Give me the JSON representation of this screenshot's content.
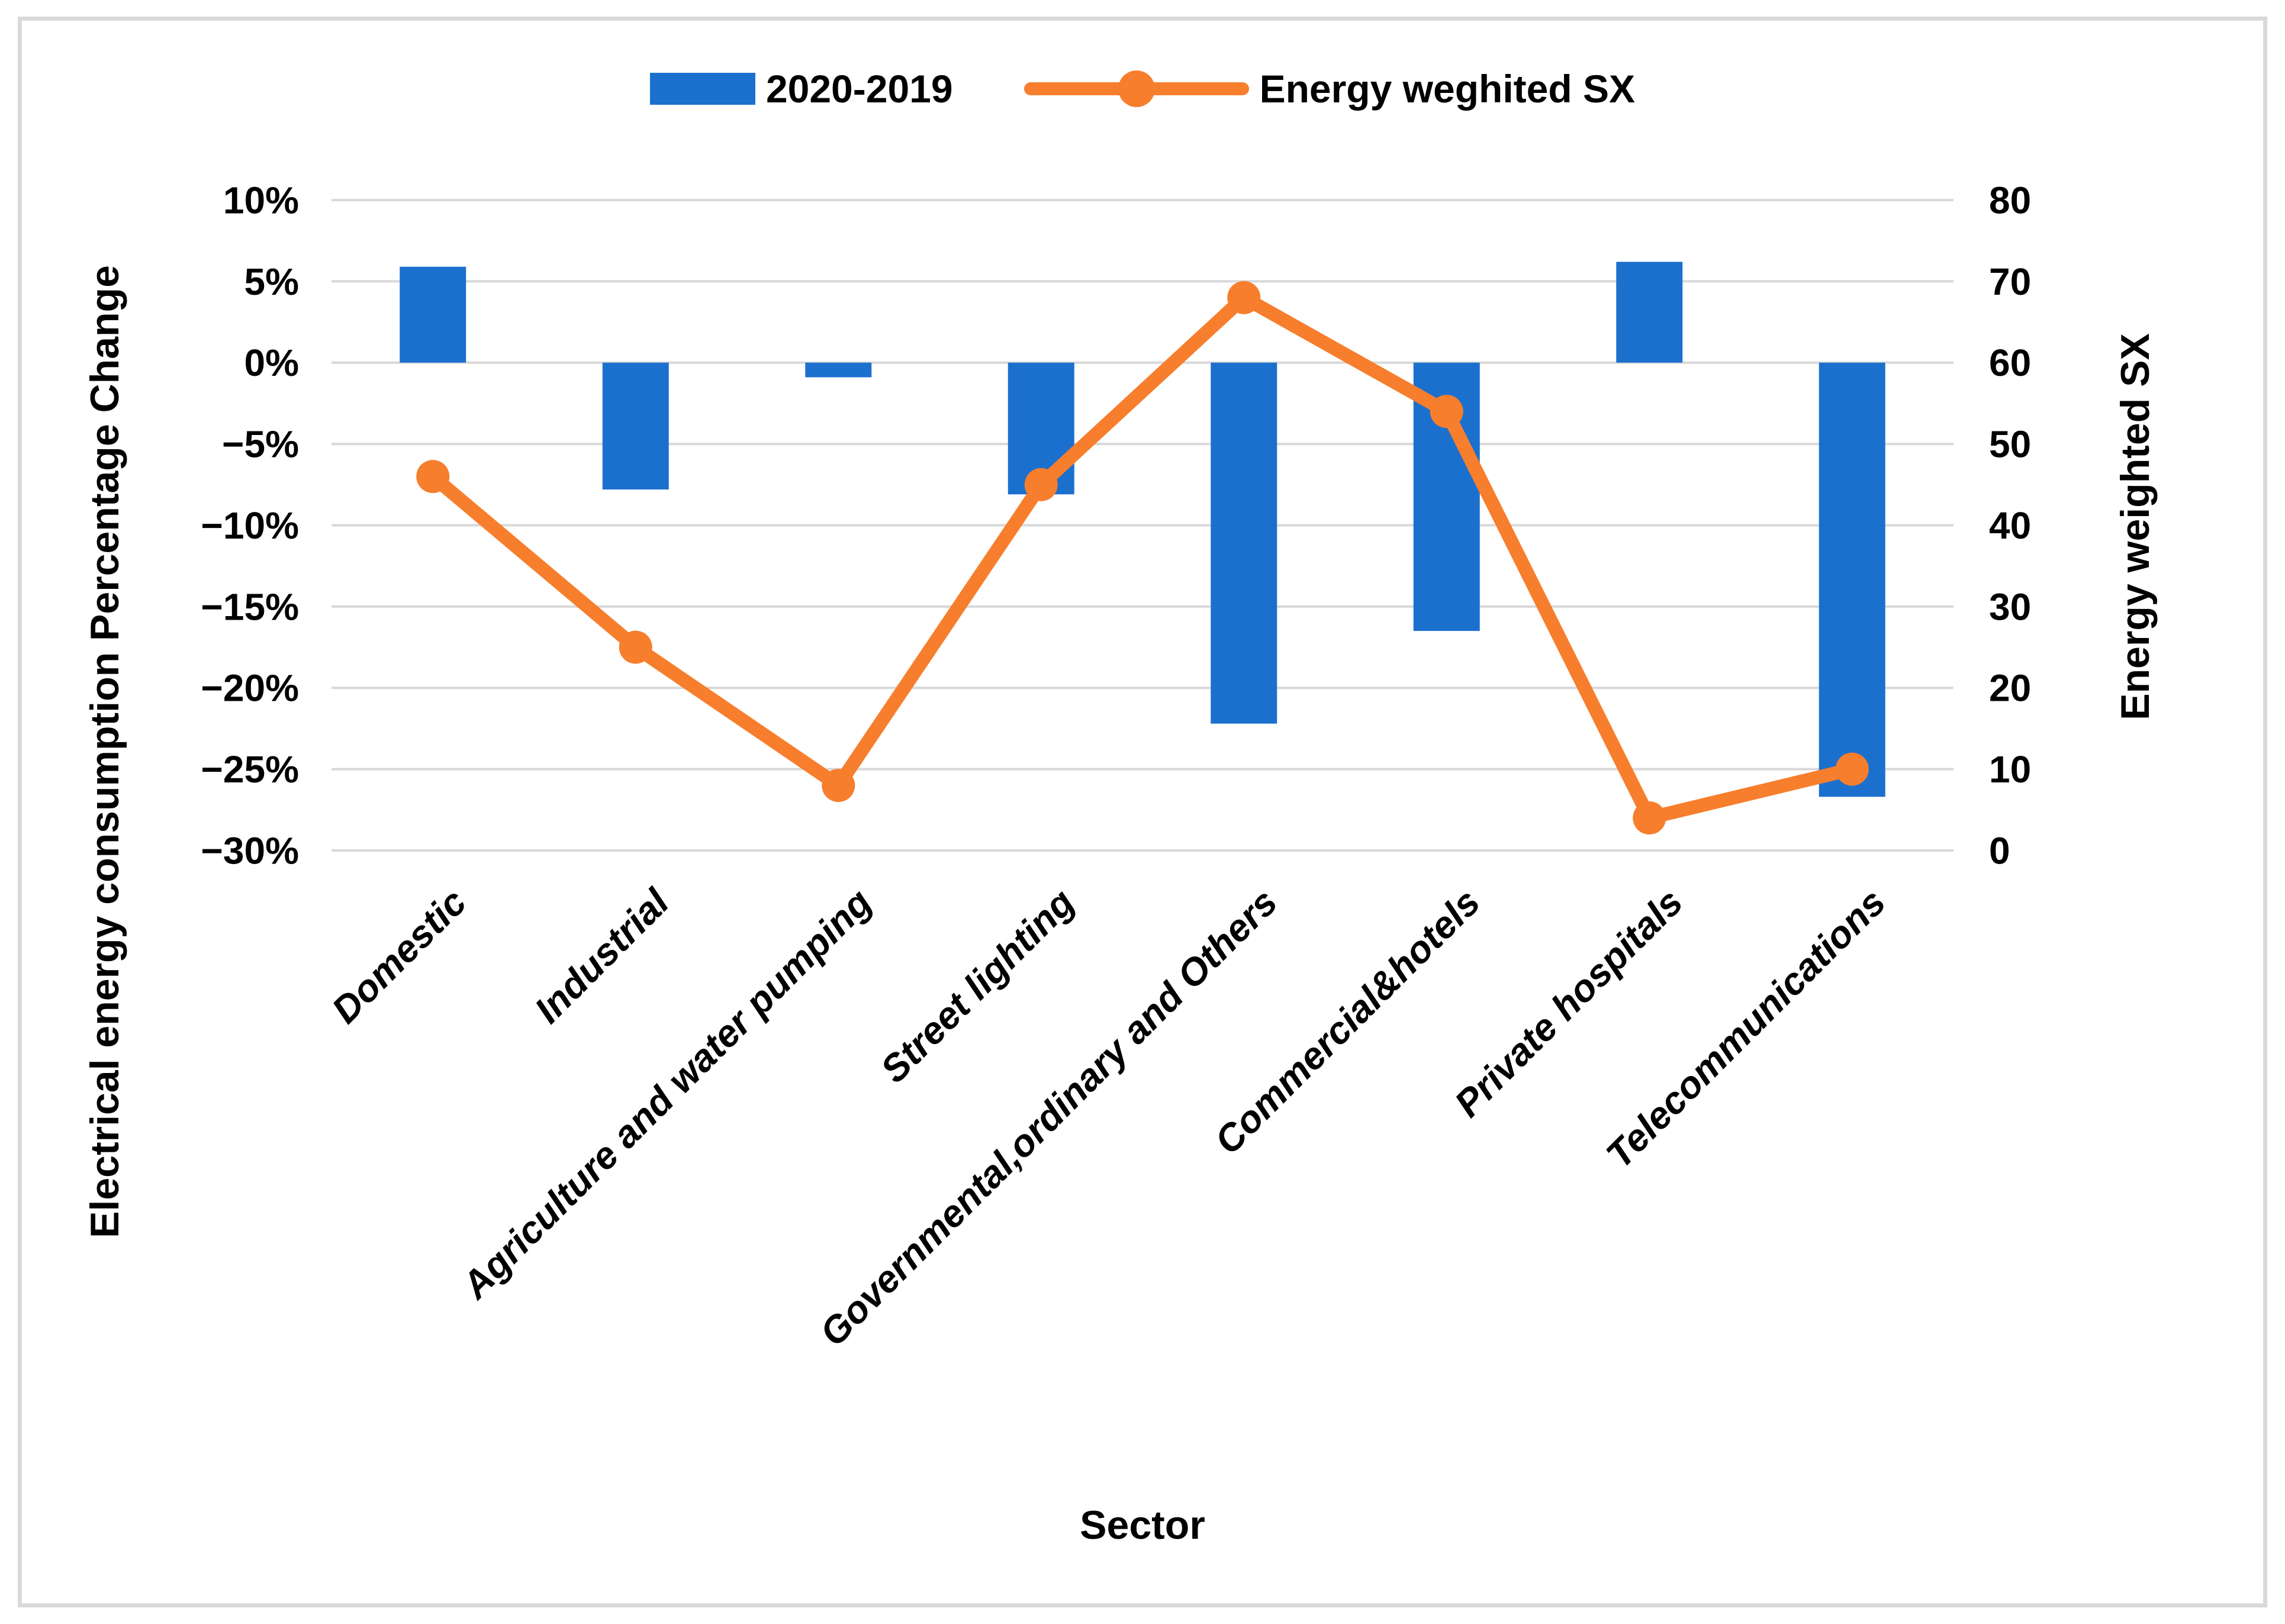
{
  "figure": {
    "background": "#FFFFFF",
    "border_color": "#D9D9D9",
    "grid_color": "#D8D8D8"
  },
  "legend": {
    "items": [
      {
        "label": "2020-2019",
        "type": "bar-swatch",
        "color": "#1C70CD"
      },
      {
        "label": "Energy weghited SX",
        "type": "line-marker",
        "color": "#F77E2D"
      }
    ]
  },
  "chart_data": {
    "type": "bar",
    "subtype": "bar+line-combo",
    "categories": [
      "Domestic",
      "Industrial",
      "Agriculture and water pumping",
      "Street lighting",
      "Governmental,ordinary and Others",
      "Commercial&hotels",
      "Private hospitals",
      "Telecommunications"
    ],
    "series": [
      {
        "name": "2020-2019",
        "type": "bar",
        "axis": "left",
        "color": "#1C70CD",
        "values": [
          5.9,
          -7.8,
          -0.9,
          -8.1,
          -22.2,
          -16.5,
          6.2,
          -26.7
        ]
      },
      {
        "name": "Energy weghited SX",
        "type": "line",
        "axis": "right",
        "color": "#F77E2D",
        "values": [
          46,
          25,
          8,
          45,
          68,
          54,
          4,
          10
        ]
      }
    ],
    "left_axis": {
      "title": "Electrical energy consumption Percentage Change",
      "ticks": [
        "10%",
        "5%",
        "0%",
        "−5%",
        "−10%",
        "−15%",
        "−20%",
        "−25%",
        "−30%"
      ],
      "max": 10,
      "min": -30,
      "step": 5
    },
    "right_axis": {
      "title": "Energy weighted SX",
      "ticks": [
        "80",
        "70",
        "60",
        "50",
        "40",
        "30",
        "20",
        "10",
        "0"
      ],
      "max": 80,
      "min": 0,
      "step": 10
    },
    "x_axis": {
      "title": "Sector"
    },
    "grid": true,
    "legend_position": "top"
  }
}
